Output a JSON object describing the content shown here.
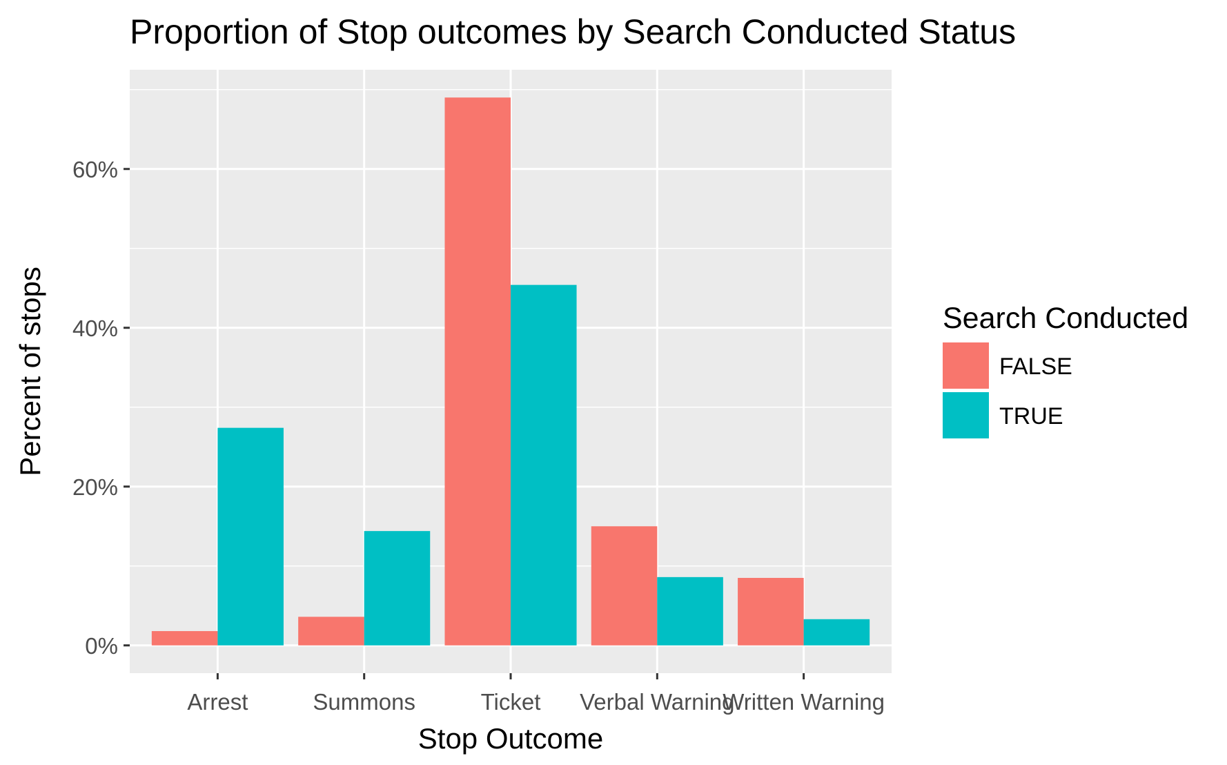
{
  "chart_data": {
    "type": "bar",
    "title": "Proportion of Stop outcomes by Search Conducted Status",
    "xlabel": "Stop Outcome",
    "ylabel": "Percent of stops",
    "categories": [
      "Arrest",
      "Summons",
      "Ticket",
      "Verbal Warning",
      "Written Warning"
    ],
    "series": [
      {
        "name": "FALSE",
        "color": "#F8766D",
        "values": [
          1.8,
          3.6,
          69.0,
          15.0,
          8.5
        ]
      },
      {
        "name": "TRUE",
        "color": "#00BFC4",
        "values": [
          27.4,
          14.4,
          45.4,
          8.6,
          3.3
        ]
      }
    ],
    "y_ticks": [
      0,
      20,
      40,
      60
    ],
    "y_tick_labels": [
      "0%",
      "20%",
      "40%",
      "60%"
    ],
    "ylim": [
      -3.5,
      72.5
    ],
    "legend": {
      "title": "Search Conducted",
      "position": "right"
    },
    "grid": true,
    "panel_background": "#EBEBEB"
  }
}
